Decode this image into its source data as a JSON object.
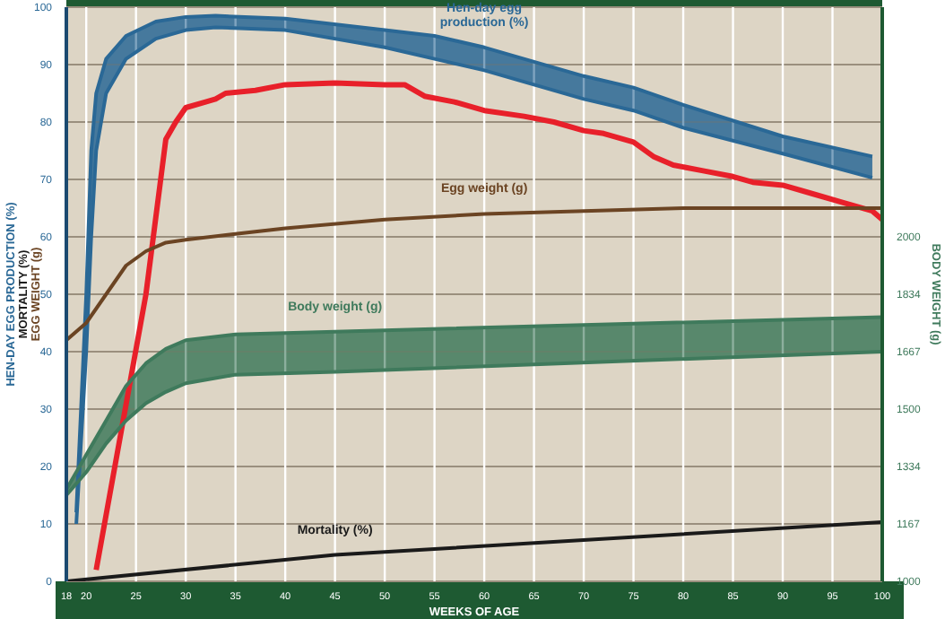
{
  "chart_data": {
    "type": "line",
    "xlabel": "WEEKS OF AGE",
    "ylabel": "HEN-DAY EGG PRODUCTION (%)\nMORTALITY (%)\nEGG WEIGHT (g)",
    "y2label": "BODY WEIGHT (g)",
    "xlim": [
      18,
      100
    ],
    "xticks": [
      18,
      20,
      25,
      30,
      35,
      40,
      45,
      50,
      55,
      60,
      65,
      70,
      75,
      80,
      85,
      90,
      95,
      100
    ],
    "ylim": [
      0,
      100
    ],
    "yticks": [
      0,
      10,
      20,
      30,
      40,
      50,
      60,
      70,
      80,
      90,
      100
    ],
    "y2lim": [
      1000,
      2667
    ],
    "y2ticks": [
      1000,
      1167,
      1334,
      1500,
      1667,
      1834,
      2000
    ],
    "grid": true,
    "series": [
      {
        "name": "Hen-day egg production (%)",
        "color": "#2a6896",
        "x": [
          19,
          20,
          20.5,
          21,
          22,
          24,
          27,
          30,
          33,
          40,
          50,
          55,
          60,
          70,
          75,
          80,
          90,
          99
        ],
        "values": [
          12,
          50,
          75,
          85,
          91,
          95,
          97.5,
          98.3,
          98.5,
          98,
          96,
          95,
          93,
          88,
          86,
          83,
          77.5,
          74
        ],
        "lower": [
          10,
          40,
          60,
          75,
          85,
          91,
          94.5,
          96,
          96.5,
          96,
          93,
          91,
          89,
          84,
          82,
          79,
          74.5,
          70.3
        ],
        "upper": [
          12,
          50,
          75,
          85,
          91,
          95,
          97.5,
          98.3,
          98.5,
          98,
          96,
          95,
          93,
          88,
          86,
          83,
          77.5,
          74
        ]
      },
      {
        "color": "#2a6896",
        "x": [
          19,
          20,
          20.5,
          21,
          22,
          24,
          27,
          30,
          33,
          40,
          50,
          55,
          60,
          70,
          75,
          80,
          90,
          99
        ],
        "values": [
          10,
          40,
          60,
          75,
          85,
          91,
          94.5,
          96,
          96.5,
          96,
          93,
          91,
          89,
          84,
          82,
          79,
          74.5,
          70.3
        ]
      },
      {
        "color": "#e8202a",
        "x": [
          21,
          26,
          28,
          29,
          30,
          32,
          33,
          34,
          37,
          40,
          45,
          50,
          52,
          54,
          57,
          60,
          64,
          67,
          70,
          72,
          75,
          77,
          79,
          82,
          85,
          87,
          90,
          93,
          96,
          99,
          100
        ],
        "values": [
          2,
          50,
          77,
          80,
          82.5,
          83.5,
          84,
          85,
          85.5,
          86.5,
          86.8,
          86.5,
          86.5,
          84.5,
          83.5,
          82,
          81,
          80,
          78.5,
          78,
          76.5,
          74,
          72.5,
          71.5,
          70.5,
          69.5,
          69,
          67.5,
          66,
          64.5,
          63
        ]
      },
      {
        "name": "Egg weight (g)",
        "color": "#6b4423",
        "x": [
          18,
          20,
          22,
          24,
          26,
          28,
          30,
          35,
          40,
          50,
          60,
          70,
          80,
          100
        ],
        "values": [
          42,
          45,
          50,
          55,
          57.5,
          59,
          59.5,
          60.5,
          61.5,
          63,
          64,
          64.5,
          65,
          65
        ]
      },
      {
        "name": "Body weight (g)",
        "axis": "y2",
        "color": "#3f7a5c",
        "x": [
          18,
          20,
          22,
          24,
          26,
          28,
          30,
          35,
          45,
          100
        ],
        "values": [
          1267,
          1367,
          1467,
          1567,
          1633,
          1675,
          1700,
          1717,
          1725,
          1767
        ],
        "lower": [
          1250,
          1317,
          1400,
          1467,
          1517,
          1550,
          1575,
          1600,
          1608,
          1667
        ],
        "upper": [
          1267,
          1367,
          1467,
          1567,
          1633,
          1675,
          1700,
          1717,
          1725,
          1767
        ]
      },
      {
        "axis": "y2",
        "color": "#3f7a5c",
        "x": [
          18,
          20,
          22,
          24,
          26,
          28,
          30,
          35,
          45,
          100
        ],
        "values": [
          1250,
          1317,
          1400,
          1467,
          1517,
          1550,
          1575,
          1600,
          1608,
          1667
        ]
      },
      {
        "name": "Mortality (%)",
        "color": "#1a1a1a",
        "x": [
          18,
          45,
          100
        ],
        "values": [
          0,
          4.6,
          10.3
        ]
      }
    ]
  }
}
